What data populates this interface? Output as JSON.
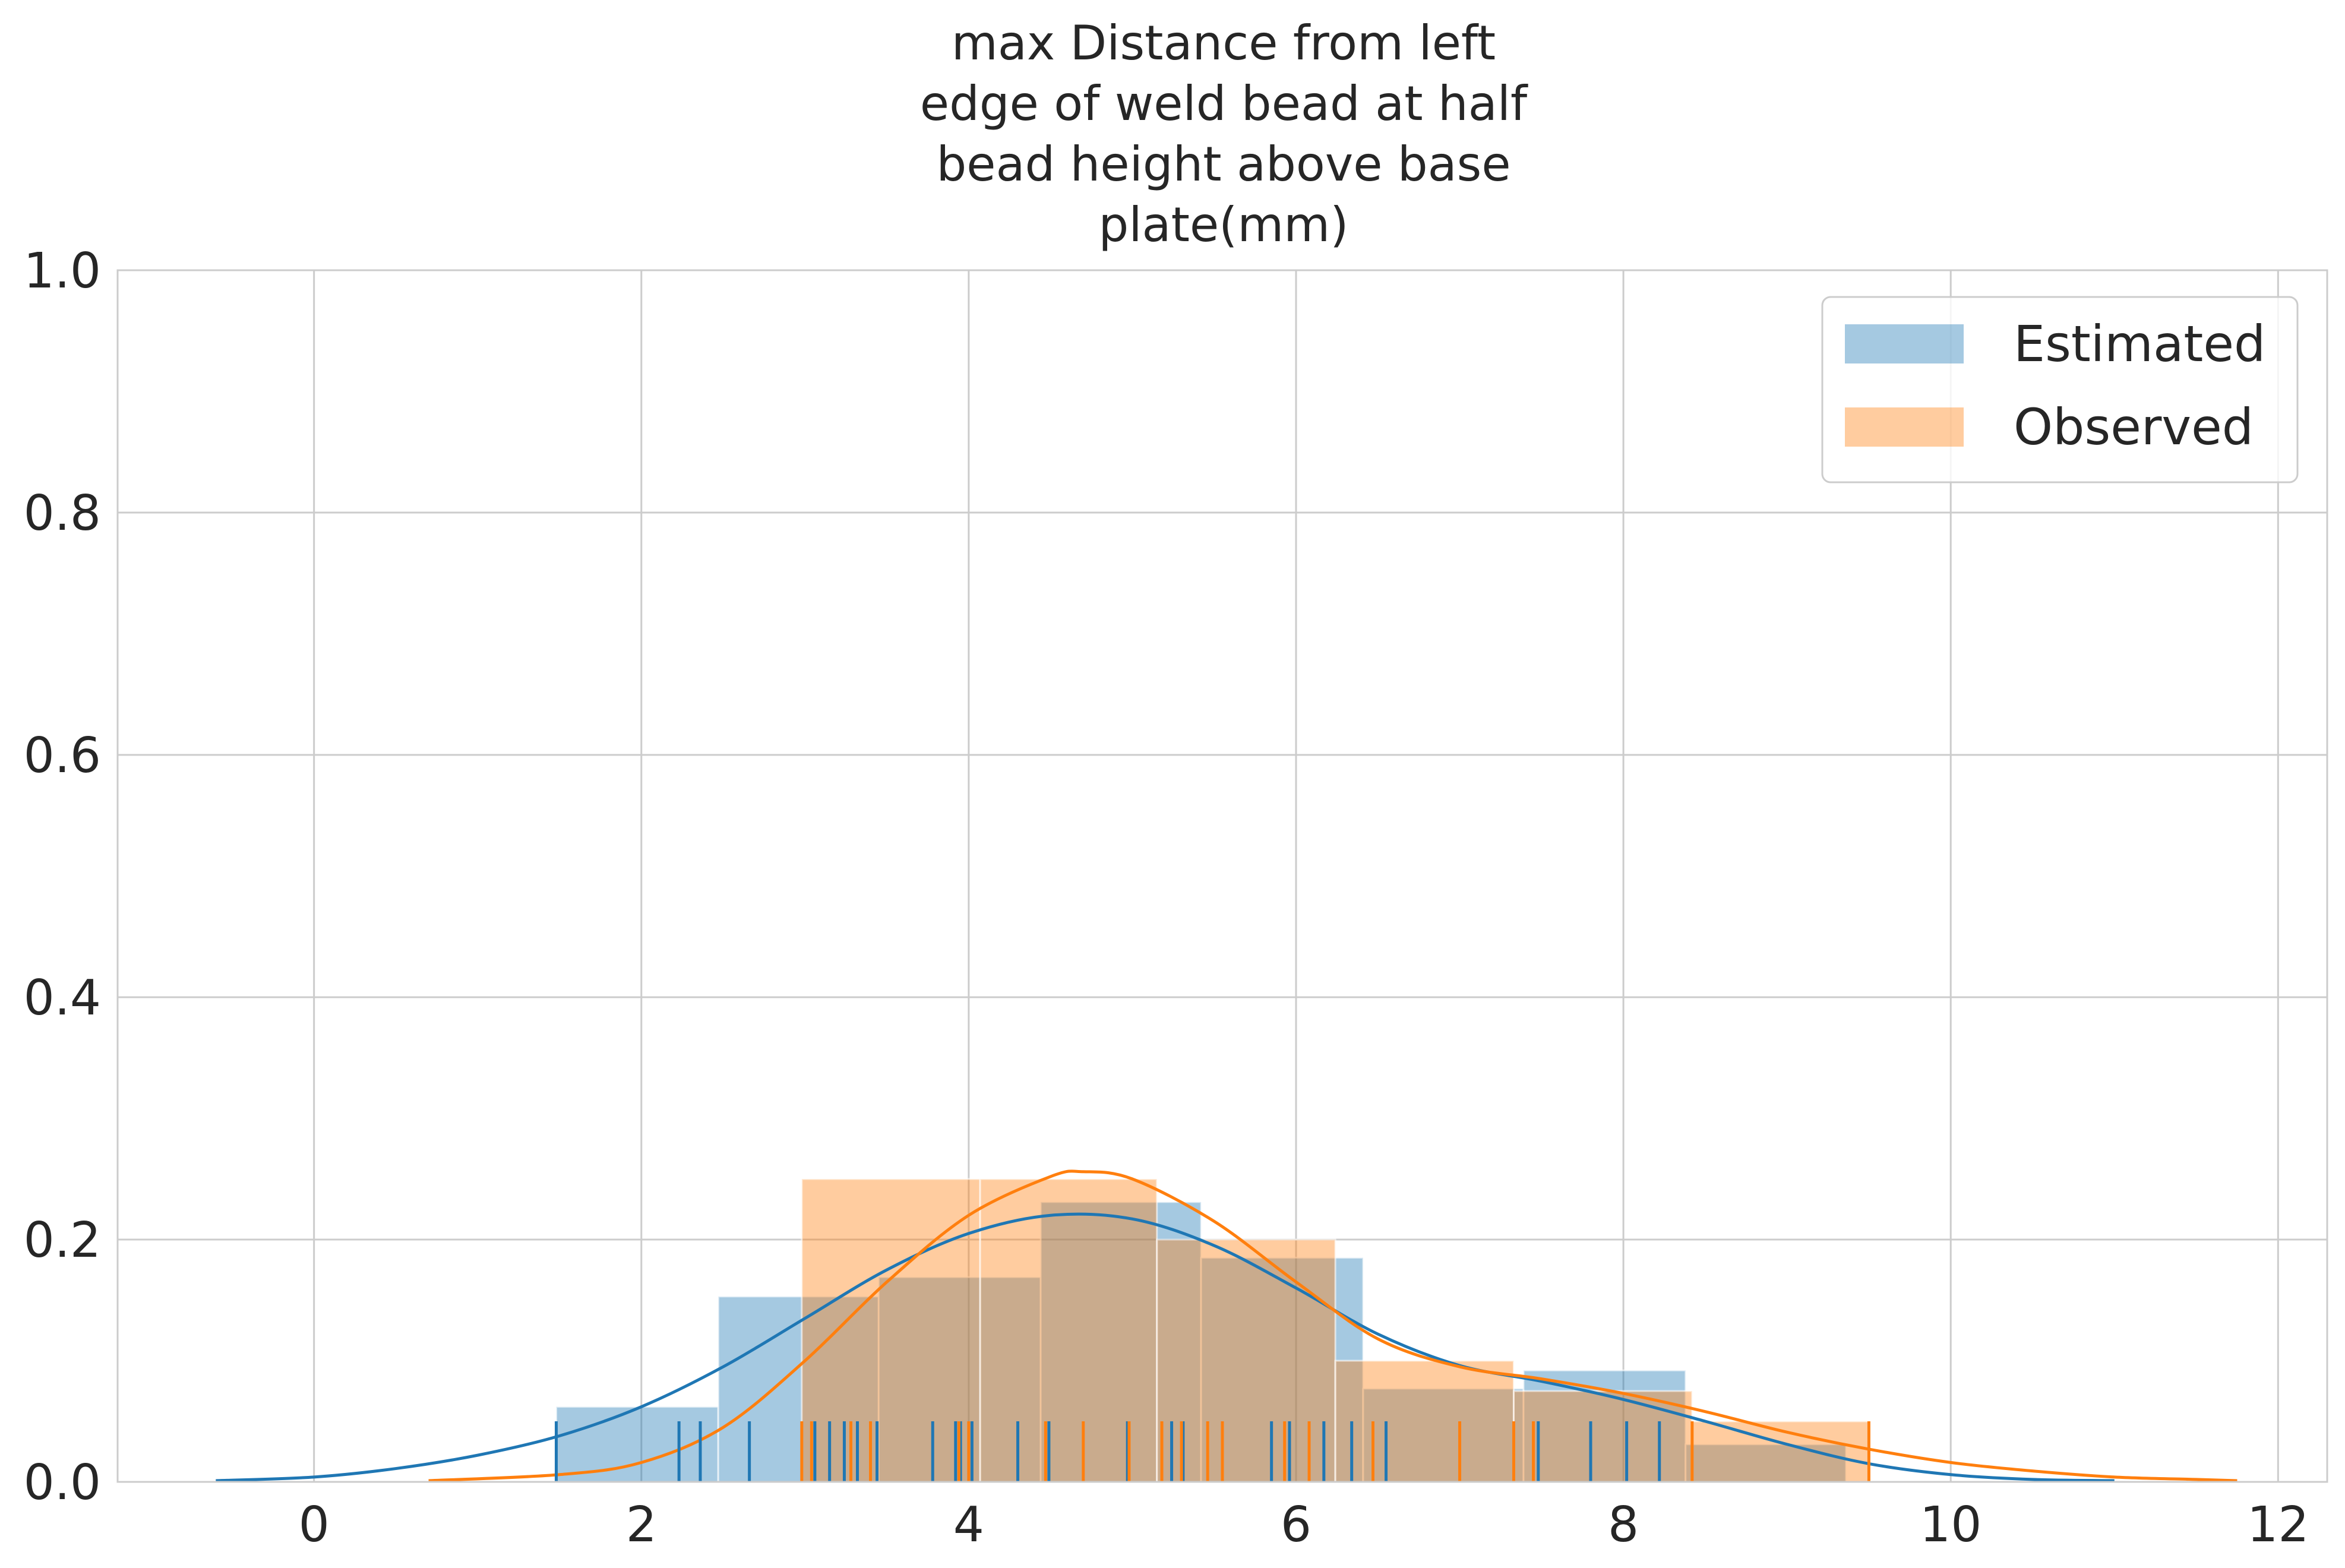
{
  "chart_data": {
    "type": "histogram",
    "title_lines": [
      "max Distance from left",
      "edge of weld bead at half",
      "bead height above base",
      "plate(mm)"
    ],
    "xlabel": "",
    "ylabel": "",
    "xlim": [
      -1.2,
      12.3
    ],
    "ylim": [
      0,
      1.0
    ],
    "x_ticks": [
      0,
      2,
      4,
      6,
      8,
      10,
      12
    ],
    "y_ticks": [
      0.0,
      0.2,
      0.4,
      0.6,
      0.8,
      1.0
    ],
    "x_tick_labels": [
      "0",
      "2",
      "4",
      "6",
      "8",
      "10",
      "12"
    ],
    "y_tick_labels": [
      "0.0",
      "0.2",
      "0.4",
      "0.6",
      "0.8",
      "1.0"
    ],
    "grid": true,
    "legend_position": "top-right",
    "series": [
      {
        "name": "Estimated",
        "color": "#1f77b4",
        "bins": [
          {
            "x0": 1.48,
            "x1": 2.47,
            "y": 0.062
          },
          {
            "x0": 2.47,
            "x1": 3.45,
            "y": 0.153
          },
          {
            "x0": 3.45,
            "x1": 4.44,
            "y": 0.169
          },
          {
            "x0": 4.44,
            "x1": 5.42,
            "y": 0.231
          },
          {
            "x0": 5.42,
            "x1": 6.41,
            "y": 0.185
          },
          {
            "x0": 6.41,
            "x1": 7.39,
            "y": 0.077
          },
          {
            "x0": 7.39,
            "x1": 8.38,
            "y": 0.092
          },
          {
            "x0": 8.38,
            "x1": 9.36,
            "y": 0.031
          }
        ],
        "kde_x": [
          -0.6,
          0.0,
          0.5,
          1.0,
          1.5,
          2.0,
          2.5,
          3.0,
          3.5,
          4.0,
          4.5,
          5.0,
          5.5,
          6.0,
          6.5,
          7.0,
          7.5,
          8.0,
          8.5,
          9.0,
          9.5,
          10.0,
          10.5,
          11.0
        ],
        "kde_y": [
          0.001,
          0.004,
          0.011,
          0.022,
          0.038,
          0.062,
          0.095,
          0.135,
          0.175,
          0.205,
          0.22,
          0.217,
          0.195,
          0.16,
          0.122,
          0.096,
          0.083,
          0.068,
          0.05,
          0.031,
          0.015,
          0.006,
          0.002,
          0.001
        ],
        "rug": [
          1.48,
          2.23,
          2.36,
          2.66,
          3.06,
          3.15,
          3.24,
          3.32,
          3.44,
          3.78,
          3.92,
          3.95,
          4.02,
          4.3,
          4.49,
          4.97,
          5.24,
          5.31,
          5.85,
          5.96,
          6.17,
          6.34,
          6.55,
          7.48,
          7.8,
          8.02,
          8.22
        ]
      },
      {
        "name": "Observed",
        "color": "#ff7f0e",
        "bins": [
          {
            "x0": 2.98,
            "x1": 4.07,
            "y": 0.25
          },
          {
            "x0": 4.07,
            "x1": 5.15,
            "y": 0.25
          },
          {
            "x0": 5.15,
            "x1": 6.24,
            "y": 0.2
          },
          {
            "x0": 6.24,
            "x1": 7.33,
            "y": 0.1
          },
          {
            "x0": 7.33,
            "x1": 8.42,
            "y": 0.075
          },
          {
            "x0": 8.42,
            "x1": 9.5,
            "y": 0.05
          }
        ],
        "kde_x": [
          0.7,
          1.5,
          2.0,
          2.5,
          3.0,
          3.5,
          4.0,
          4.5,
          4.7,
          5.0,
          5.5,
          6.0,
          6.5,
          7.0,
          7.5,
          8.0,
          8.5,
          9.0,
          9.5,
          10.0,
          10.5,
          11.0,
          11.5,
          11.75
        ],
        "kde_y": [
          0.001,
          0.006,
          0.016,
          0.045,
          0.1,
          0.165,
          0.22,
          0.252,
          0.256,
          0.25,
          0.215,
          0.165,
          0.118,
          0.095,
          0.085,
          0.073,
          0.058,
          0.041,
          0.027,
          0.016,
          0.009,
          0.004,
          0.002,
          0.001
        ],
        "rug": [
          2.98,
          3.04,
          3.28,
          3.4,
          3.94,
          4.0,
          4.47,
          4.7,
          4.98,
          5.18,
          5.3,
          5.46,
          5.55,
          5.93,
          6.08,
          6.47,
          7.0,
          7.33,
          7.45,
          8.42,
          9.5
        ]
      }
    ]
  }
}
